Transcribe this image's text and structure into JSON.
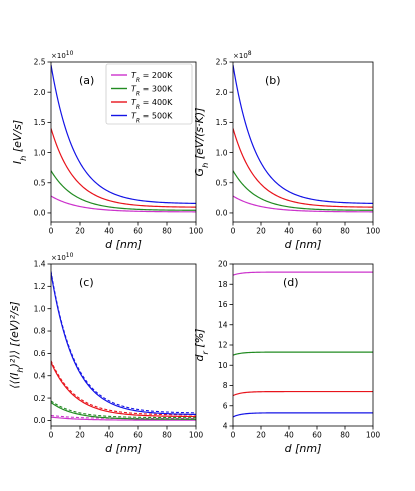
{
  "figure": {
    "legend": [
      {
        "label": "T_R = 200K",
        "color": "#cc33cc"
      },
      {
        "label": "T_R = 300K",
        "color": "#228b22"
      },
      {
        "label": "T_R = 400K",
        "color": "#e8141c"
      },
      {
        "label": "T_R = 500K",
        "color": "#1414e6"
      }
    ]
  },
  "chart_data": [
    {
      "type": "line",
      "panel_label": "(a)",
      "title": "",
      "xlabel": "d [nm]",
      "ylabel": "I_h [eV/s]",
      "multiplier": "×10^10",
      "xlim": [
        0,
        100
      ],
      "ylim": [
        -0.15,
        2.5
      ],
      "xticks": [
        0,
        20,
        40,
        60,
        80,
        100
      ],
      "yticks": [
        0.0,
        0.5,
        1.0,
        1.5,
        2.0,
        2.5
      ],
      "curve_form": "exp_decay_to_asymptote",
      "series": [
        {
          "name": "T_R = 200K",
          "color": "#cc33cc",
          "x": [
            0,
            10,
            20,
            30,
            40,
            60,
            80,
            100
          ],
          "values": [
            0.28,
            0.17,
            0.11,
            0.08,
            0.06,
            0.04,
            0.03,
            0.02
          ]
        },
        {
          "name": "T_R = 300K",
          "color": "#228b22",
          "x": [
            0,
            10,
            20,
            30,
            40,
            60,
            80,
            100
          ],
          "values": [
            0.7,
            0.4,
            0.26,
            0.18,
            0.13,
            0.08,
            0.06,
            0.05
          ]
        },
        {
          "name": "T_R = 400K",
          "color": "#e8141c",
          "x": [
            0,
            10,
            20,
            30,
            40,
            60,
            80,
            100
          ],
          "values": [
            1.4,
            0.8,
            0.51,
            0.36,
            0.27,
            0.17,
            0.13,
            0.11
          ]
        },
        {
          "name": "T_R = 500K",
          "color": "#1414e6",
          "x": [
            0,
            10,
            20,
            30,
            40,
            60,
            80,
            100
          ],
          "values": [
            2.45,
            1.4,
            0.89,
            0.62,
            0.46,
            0.29,
            0.21,
            0.18
          ]
        }
      ]
    },
    {
      "type": "line",
      "panel_label": "(b)",
      "title": "",
      "xlabel": "d [nm]",
      "ylabel": "G_h [eV/(s·K)]",
      "multiplier": "×10^8",
      "xlim": [
        0,
        100
      ],
      "ylim": [
        -0.15,
        2.5
      ],
      "xticks": [
        0,
        20,
        40,
        60,
        80,
        100
      ],
      "yticks": [
        0.0,
        0.5,
        1.0,
        1.5,
        2.0,
        2.5
      ],
      "curve_form": "exp_decay_to_asymptote",
      "series": [
        {
          "name": "T_R = 200K",
          "color": "#cc33cc",
          "x": [
            0,
            10,
            20,
            30,
            40,
            60,
            80,
            100
          ],
          "values": [
            0.28,
            0.17,
            0.11,
            0.08,
            0.06,
            0.04,
            0.03,
            0.02
          ]
        },
        {
          "name": "T_R = 300K",
          "color": "#228b22",
          "x": [
            0,
            10,
            20,
            30,
            40,
            60,
            80,
            100
          ],
          "values": [
            0.7,
            0.4,
            0.26,
            0.18,
            0.13,
            0.08,
            0.06,
            0.05
          ]
        },
        {
          "name": "T_R = 400K",
          "color": "#e8141c",
          "x": [
            0,
            10,
            20,
            30,
            40,
            60,
            80,
            100
          ],
          "values": [
            1.4,
            0.8,
            0.51,
            0.36,
            0.27,
            0.17,
            0.13,
            0.11
          ]
        },
        {
          "name": "T_R = 500K",
          "color": "#1414e6",
          "x": [
            0,
            10,
            20,
            30,
            40,
            60,
            80,
            100
          ],
          "values": [
            2.45,
            1.4,
            0.89,
            0.62,
            0.46,
            0.29,
            0.21,
            0.18
          ]
        }
      ]
    },
    {
      "type": "line",
      "panel_label": "(c)",
      "title": "",
      "xlabel": "d [nm]",
      "ylabel": "⟨⟨(I_h)²⟩⟩ [(eV)²/s]",
      "multiplier": "×10^10",
      "xlim": [
        0,
        100
      ],
      "ylim": [
        -0.05,
        1.4
      ],
      "xticks": [
        0,
        20,
        40,
        60,
        80,
        100
      ],
      "yticks": [
        0.0,
        0.2,
        0.4,
        0.6,
        0.8,
        1.0,
        1.2,
        1.4
      ],
      "curve_form": "exp_decay_to_asymptote",
      "dashed_overlay": true,
      "series": [
        {
          "name": "T_R = 200K",
          "color": "#cc33cc",
          "x": [
            0,
            10,
            20,
            30,
            40,
            60,
            80,
            100
          ],
          "values": [
            0.03,
            0.018,
            0.012,
            0.008,
            0.006,
            0.004,
            0.003,
            0.002
          ]
        },
        {
          "name": "T_R = 300K",
          "color": "#228b22",
          "x": [
            0,
            10,
            20,
            30,
            40,
            60,
            80,
            100
          ],
          "values": [
            0.16,
            0.09,
            0.055,
            0.038,
            0.028,
            0.018,
            0.014,
            0.012
          ]
        },
        {
          "name": "T_R = 400K",
          "color": "#e8141c",
          "x": [
            0,
            10,
            20,
            30,
            40,
            60,
            80,
            100
          ],
          "values": [
            0.52,
            0.3,
            0.19,
            0.13,
            0.1,
            0.065,
            0.05,
            0.04
          ]
        },
        {
          "name": "T_R = 500K",
          "color": "#1414e6",
          "x": [
            0,
            10,
            20,
            30,
            40,
            60,
            80,
            100
          ],
          "values": [
            1.32,
            0.74,
            0.46,
            0.32,
            0.24,
            0.14,
            0.09,
            0.06
          ]
        }
      ]
    },
    {
      "type": "line",
      "panel_label": "(d)",
      "title": "",
      "xlabel": "d [nm]",
      "ylabel": "d_r [%]",
      "multiplier": "",
      "xlim": [
        0,
        100
      ],
      "ylim": [
        4,
        20
      ],
      "xticks": [
        0,
        20,
        40,
        60,
        80,
        100
      ],
      "yticks": [
        4,
        6,
        8,
        10,
        12,
        14,
        16,
        18,
        20
      ],
      "curve_form": "saturating_rise",
      "series": [
        {
          "name": "T_R = 200K",
          "color": "#cc33cc",
          "x": [
            0,
            10,
            20,
            40,
            60,
            80,
            100
          ],
          "values": [
            18.9,
            19.1,
            19.15,
            19.2,
            19.2,
            19.2,
            19.2
          ]
        },
        {
          "name": "T_R = 300K",
          "color": "#228b22",
          "x": [
            0,
            10,
            20,
            40,
            60,
            80,
            100
          ],
          "values": [
            11.0,
            11.2,
            11.25,
            11.3,
            11.3,
            11.3,
            11.3
          ]
        },
        {
          "name": "T_R = 400K",
          "color": "#e8141c",
          "x": [
            0,
            10,
            20,
            40,
            60,
            80,
            100
          ],
          "values": [
            7.0,
            7.3,
            7.35,
            7.4,
            7.4,
            7.4,
            7.4
          ]
        },
        {
          "name": "T_R = 500K",
          "color": "#1414e6",
          "x": [
            0,
            10,
            20,
            40,
            60,
            80,
            100
          ],
          "values": [
            4.9,
            5.15,
            5.25,
            5.3,
            5.3,
            5.3,
            5.3
          ]
        }
      ]
    }
  ]
}
